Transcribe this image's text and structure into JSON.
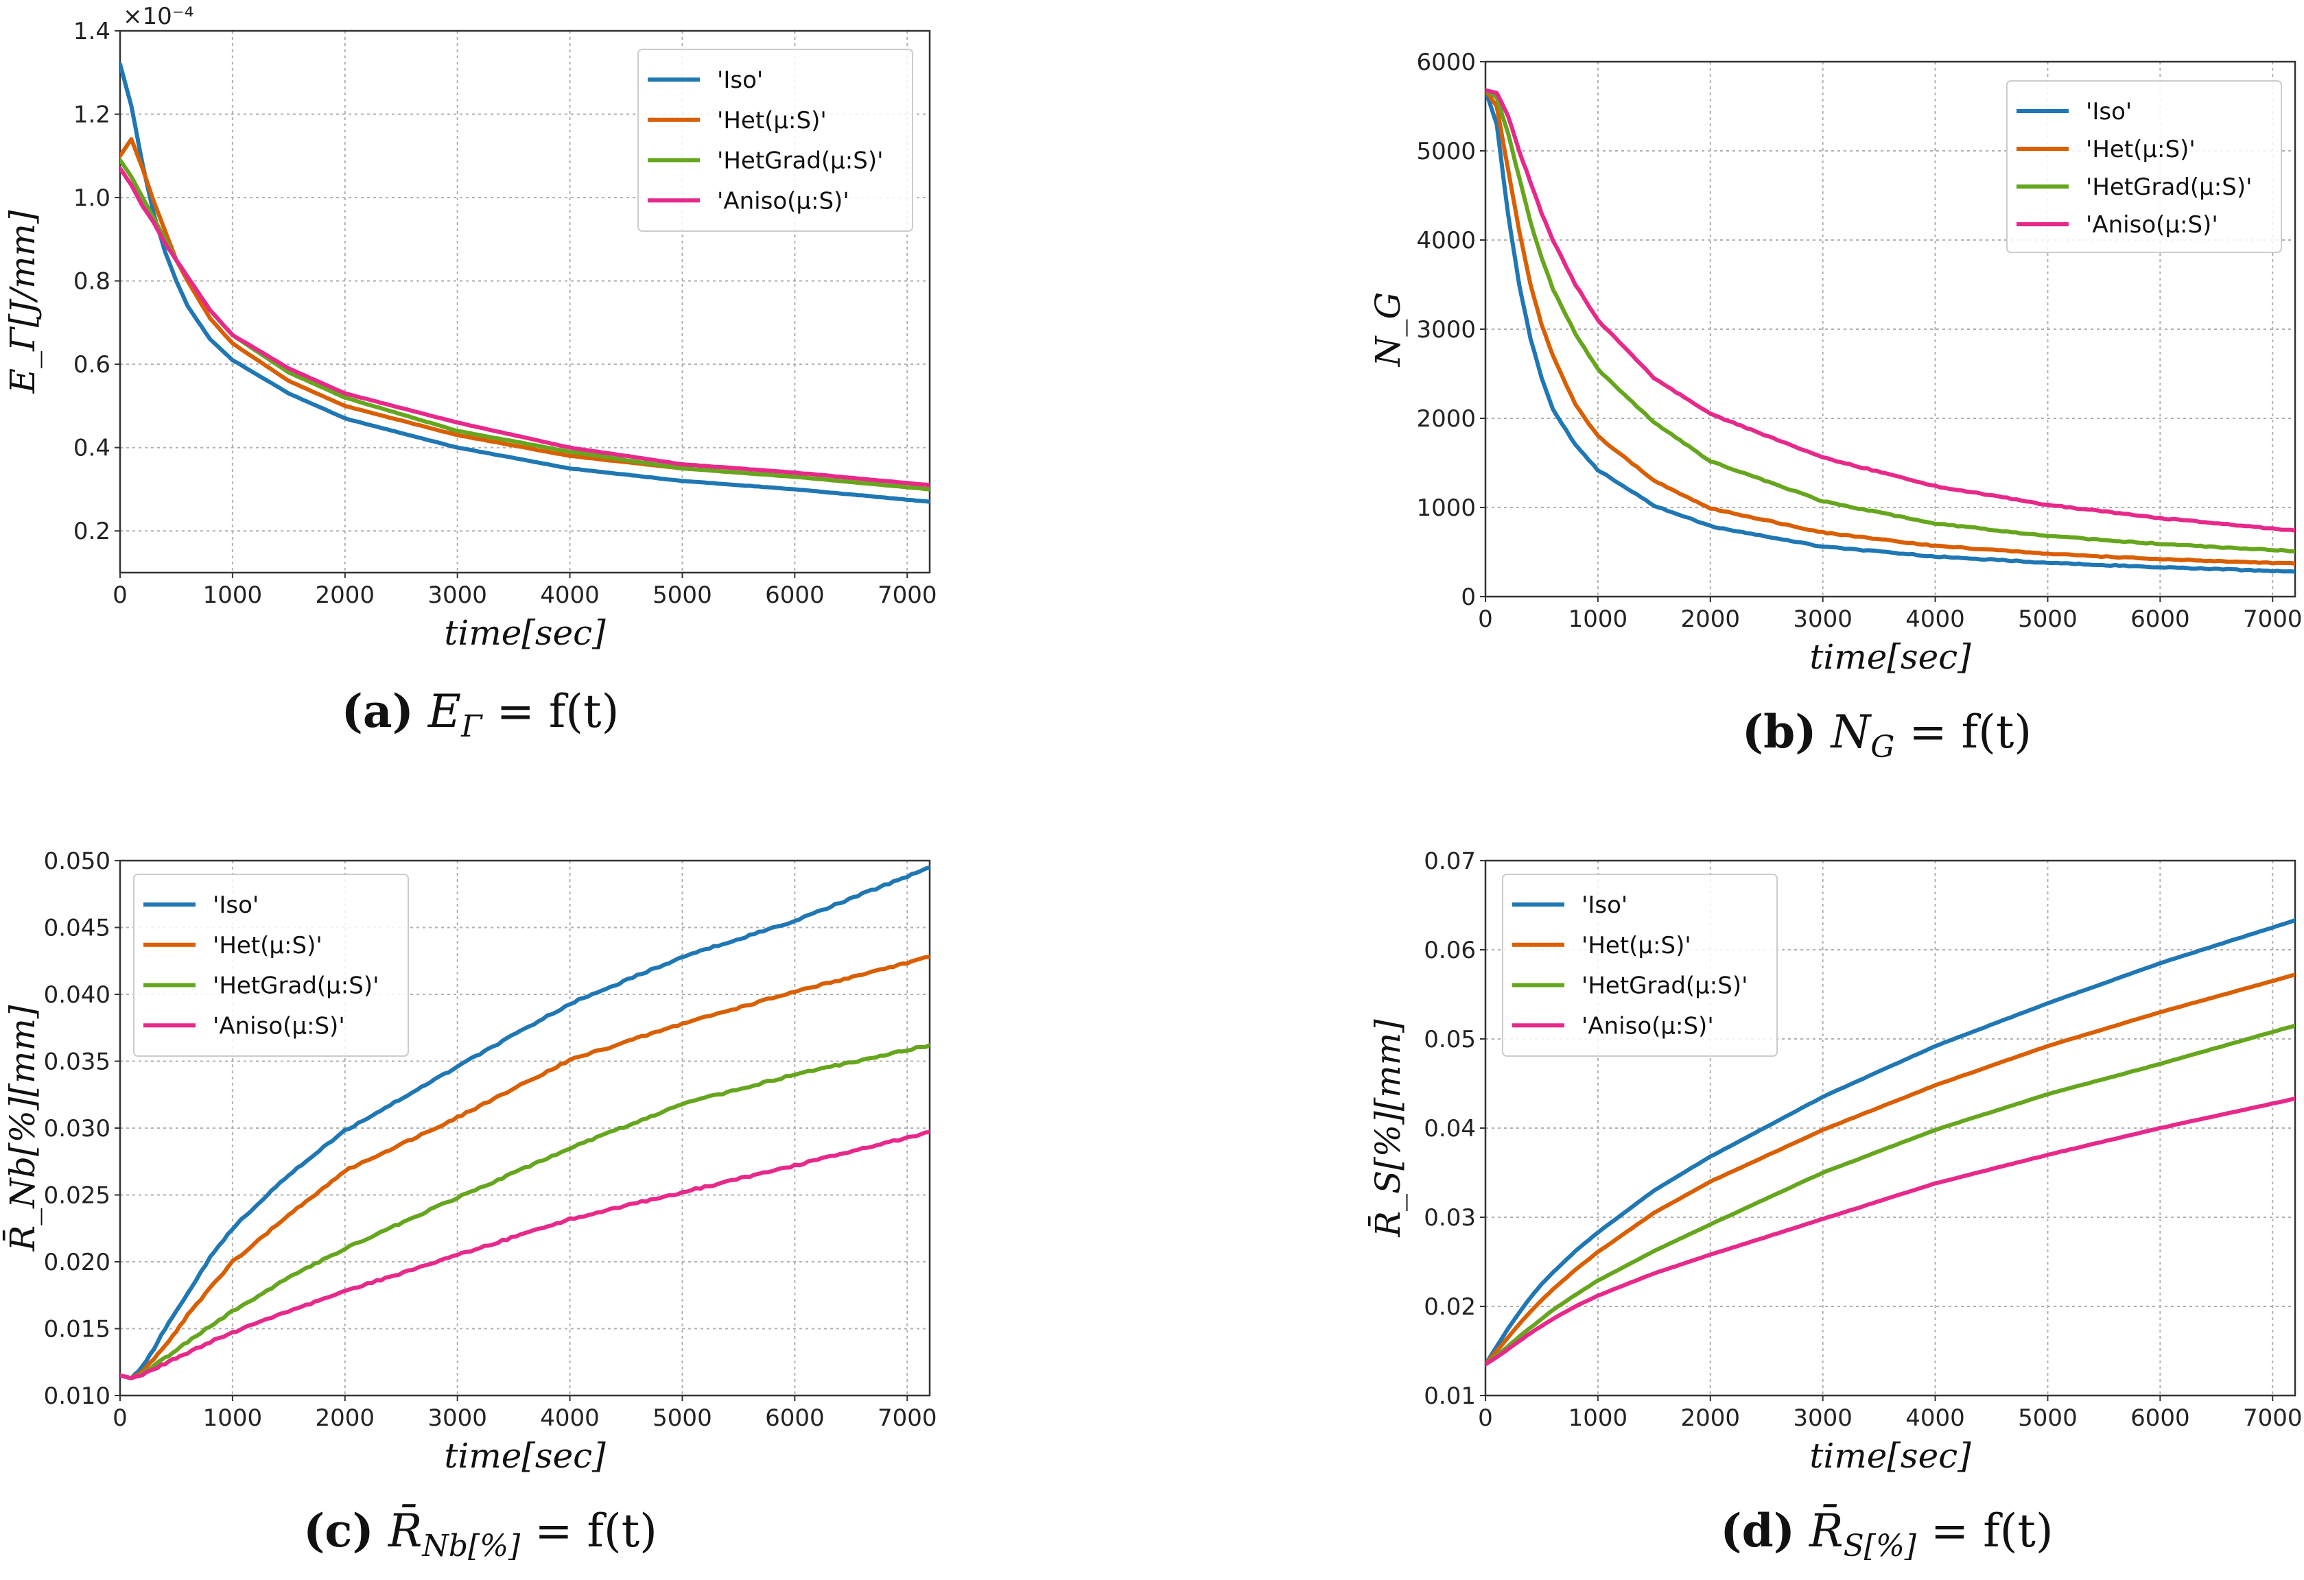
{
  "series_names": [
    "'Iso'",
    "'Het(μ:S)'",
    "'HetGrad(μ:S)'",
    "'Aniso(μ:S)'"
  ],
  "series_colors": [
    "#1f77b4",
    "#d95f02",
    "#66a61e",
    "#e7298a"
  ],
  "chart_data": [
    {
      "type": "line",
      "id": "a",
      "caption_label": "(a)",
      "caption_formula": "E_Γ = f(t)",
      "xlabel": "time[sec]",
      "ylabel": "E_Γ[J/mm]",
      "offset_text": "×10⁻⁴",
      "xlim": [
        0,
        7200
      ],
      "ylim": [
        0.1,
        1.4
      ],
      "xticks": [
        0,
        1000,
        2000,
        3000,
        4000,
        5000,
        6000,
        7000
      ],
      "yticks": [
        0.2,
        0.4,
        0.6,
        0.8,
        1.0,
        1.2,
        1.4
      ],
      "ytick_labels": [
        "0.2",
        "0.4",
        "0.6",
        "0.8",
        "1.0",
        "1.2",
        "1.4"
      ],
      "legend_position": "upper-right",
      "x": [
        0,
        100,
        200,
        300,
        400,
        500,
        600,
        800,
        1000,
        1500,
        2000,
        3000,
        4000,
        5000,
        6000,
        7200
      ],
      "series": [
        {
          "name": "'Iso'",
          "values": [
            1.32,
            1.22,
            1.08,
            0.96,
            0.87,
            0.8,
            0.74,
            0.66,
            0.61,
            0.53,
            0.47,
            0.4,
            0.35,
            0.32,
            0.3,
            0.27
          ]
        },
        {
          "name": "'Het(μ:S)'",
          "values": [
            1.1,
            1.14,
            1.07,
            0.99,
            0.92,
            0.85,
            0.8,
            0.71,
            0.65,
            0.56,
            0.5,
            0.43,
            0.38,
            0.35,
            0.33,
            0.3
          ]
        },
        {
          "name": "'HetGrad(μ:S)'",
          "values": [
            1.09,
            1.05,
            1.0,
            0.95,
            0.9,
            0.85,
            0.81,
            0.73,
            0.67,
            0.58,
            0.52,
            0.44,
            0.39,
            0.35,
            0.33,
            0.3
          ]
        },
        {
          "name": "'Aniso(μ:S)'",
          "values": [
            1.07,
            1.03,
            0.98,
            0.94,
            0.89,
            0.85,
            0.81,
            0.73,
            0.67,
            0.59,
            0.53,
            0.46,
            0.4,
            0.36,
            0.34,
            0.31
          ]
        }
      ]
    },
    {
      "type": "line",
      "id": "b",
      "caption_label": "(b)",
      "caption_formula": "N_G = f(t)",
      "xlabel": "time[sec]",
      "ylabel": "N_G",
      "offset_text": "",
      "xlim": [
        0,
        7200
      ],
      "ylim": [
        0,
        6000
      ],
      "xticks": [
        0,
        1000,
        2000,
        3000,
        4000,
        5000,
        6000,
        7000
      ],
      "yticks": [
        0,
        1000,
        2000,
        3000,
        4000,
        5000,
        6000
      ],
      "ytick_labels": [
        "0",
        "1000",
        "2000",
        "3000",
        "4000",
        "5000",
        "6000"
      ],
      "legend_position": "upper-right",
      "x": [
        0,
        100,
        200,
        300,
        400,
        500,
        600,
        800,
        1000,
        1500,
        2000,
        3000,
        4000,
        5000,
        6000,
        7200
      ],
      "series": [
        {
          "name": "'Iso'",
          "values": [
            5680,
            5300,
            4300,
            3500,
            2900,
            2450,
            2100,
            1700,
            1420,
            1020,
            790,
            560,
            450,
            380,
            330,
            280
          ]
        },
        {
          "name": "'Het(μ:S)'",
          "values": [
            5680,
            5500,
            4800,
            4100,
            3500,
            3050,
            2700,
            2150,
            1800,
            1300,
            990,
            720,
            570,
            480,
            420,
            370
          ]
        },
        {
          "name": "'HetGrad(μ:S)'",
          "values": [
            5680,
            5600,
            5200,
            4700,
            4200,
            3800,
            3450,
            2950,
            2550,
            1950,
            1520,
            1070,
            820,
            680,
            590,
            510
          ]
        },
        {
          "name": "'Aniso(μ:S)'",
          "values": [
            5680,
            5650,
            5400,
            5000,
            4650,
            4300,
            4000,
            3500,
            3100,
            2450,
            2050,
            1560,
            1240,
            1030,
            880,
            740
          ]
        }
      ]
    },
    {
      "type": "line",
      "id": "c",
      "caption_label": "(c)",
      "caption_formula": "R̄_Nb[%] = f(t)",
      "xlabel": "time[sec]",
      "ylabel": "R̄_Nb[%][mm]",
      "offset_text": "",
      "xlim": [
        0,
        7200
      ],
      "ylim": [
        0.01,
        0.05
      ],
      "xticks": [
        0,
        1000,
        2000,
        3000,
        4000,
        5000,
        6000,
        7000
      ],
      "yticks": [
        0.01,
        0.015,
        0.02,
        0.025,
        0.03,
        0.035,
        0.04,
        0.045,
        0.05
      ],
      "ytick_labels": [
        "0.010",
        "0.015",
        "0.020",
        "0.025",
        "0.030",
        "0.035",
        "0.040",
        "0.045",
        "0.050"
      ],
      "legend_position": "upper-left",
      "x": [
        0,
        100,
        200,
        300,
        400,
        500,
        600,
        800,
        1000,
        1500,
        2000,
        3000,
        4000,
        5000,
        6000,
        7200
      ],
      "series": [
        {
          "name": "'Iso'",
          "values": [
            0.0115,
            0.0113,
            0.0122,
            0.0135,
            0.015,
            0.0163,
            0.0176,
            0.0203,
            0.0225,
            0.0265,
            0.0298,
            0.0346,
            0.0393,
            0.0428,
            0.0455,
            0.0495
          ]
        },
        {
          "name": "'Het(μ:S)'",
          "values": [
            0.0115,
            0.0113,
            0.0118,
            0.0127,
            0.0137,
            0.0148,
            0.016,
            0.018,
            0.02,
            0.0235,
            0.0268,
            0.0308,
            0.0351,
            0.0378,
            0.0402,
            0.0428
          ]
        },
        {
          "name": "'HetGrad(μ:S)'",
          "values": [
            0.0115,
            0.0113,
            0.0116,
            0.0122,
            0.0128,
            0.0134,
            0.014,
            0.0152,
            0.0163,
            0.0188,
            0.021,
            0.0248,
            0.0285,
            0.0318,
            0.034,
            0.0362
          ]
        },
        {
          "name": "'Aniso(μ:S)'",
          "values": [
            0.0115,
            0.0113,
            0.0116,
            0.012,
            0.0124,
            0.0128,
            0.0132,
            0.014,
            0.0147,
            0.0163,
            0.0178,
            0.0205,
            0.0232,
            0.0252,
            0.0272,
            0.0297
          ]
        }
      ]
    },
    {
      "type": "line",
      "id": "d",
      "caption_label": "(d)",
      "caption_formula": "R̄_S[%] = f(t)",
      "xlabel": "time[sec]",
      "ylabel": "R̄_S[%][mm]",
      "offset_text": "",
      "xlim": [
        0,
        7200
      ],
      "ylim": [
        0.01,
        0.07
      ],
      "xticks": [
        0,
        1000,
        2000,
        3000,
        4000,
        5000,
        6000,
        7000
      ],
      "yticks": [
        0.01,
        0.02,
        0.03,
        0.04,
        0.05,
        0.06,
        0.07
      ],
      "ytick_labels": [
        "0.01",
        "0.02",
        "0.03",
        "0.04",
        "0.05",
        "0.06",
        "0.07"
      ],
      "legend_position": "upper-left",
      "x": [
        0,
        100,
        200,
        300,
        400,
        500,
        600,
        800,
        1000,
        1500,
        2000,
        3000,
        4000,
        5000,
        6000,
        7200
      ],
      "series": [
        {
          "name": "'Iso'",
          "values": [
            0.0135,
            0.0155,
            0.0175,
            0.0193,
            0.021,
            0.0225,
            0.0238,
            0.0262,
            0.0283,
            0.033,
            0.0368,
            0.0435,
            0.0492,
            0.054,
            0.0585,
            0.0633
          ]
        },
        {
          "name": "'Het(μ:S)'",
          "values": [
            0.0135,
            0.015,
            0.0165,
            0.018,
            0.0194,
            0.0207,
            0.0219,
            0.0241,
            0.0261,
            0.0305,
            0.034,
            0.0398,
            0.0448,
            0.0492,
            0.053,
            0.0572
          ]
        },
        {
          "name": "'HetGrad(μ:S)'",
          "values": [
            0.0135,
            0.0145,
            0.0155,
            0.0166,
            0.0176,
            0.0186,
            0.0196,
            0.0213,
            0.0229,
            0.0262,
            0.0292,
            0.035,
            0.0398,
            0.0438,
            0.0472,
            0.0515
          ]
        },
        {
          "name": "'Aniso(μ:S)'",
          "values": [
            0.0135,
            0.0143,
            0.0152,
            0.0161,
            0.017,
            0.0178,
            0.0186,
            0.02,
            0.0212,
            0.0237,
            0.0258,
            0.0298,
            0.0338,
            0.037,
            0.04,
            0.0433
          ]
        }
      ]
    }
  ]
}
